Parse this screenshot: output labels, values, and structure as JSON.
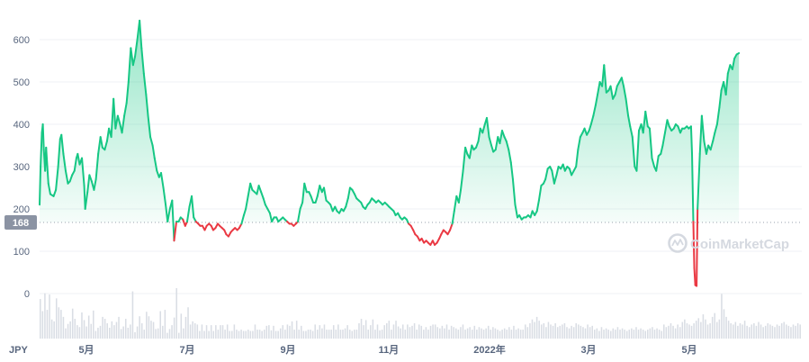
{
  "chart_data": {
    "type": "area",
    "currency_label": "JPY",
    "baseline_value": 168,
    "baseline_label": "168",
    "ylim": [
      -90,
      670
    ],
    "y_ticks": [
      0,
      100,
      200,
      300,
      400,
      500,
      600
    ],
    "y_tick_labels": [
      "0",
      "100",
      "200",
      "300",
      "400",
      "500",
      "600"
    ],
    "x_range": [
      0,
      23.4
    ],
    "x_ticks": [
      {
        "pos": 2.2,
        "label": "5月"
      },
      {
        "pos": 6.1,
        "label": "7月"
      },
      {
        "pos": 10.0,
        "label": "9月"
      },
      {
        "pos": 13.9,
        "label": "11月"
      },
      {
        "pos": 17.9,
        "label": "2022年"
      },
      {
        "pos": 21.8,
        "label": "3月"
      },
      {
        "pos": 25.7,
        "label": "5月"
      }
    ],
    "x_tick_spacing_note": "",
    "colors": {
      "up": "#16c784",
      "down": "#ea3943",
      "volume": "#d9dde4",
      "grid": "#eff2f5",
      "baseline_badge": "#8b93a3"
    },
    "grid": true,
    "watermark": "CoinMarketCap",
    "price_series": [
      [
        0.0,
        210
      ],
      [
        0.03,
        300
      ],
      [
        0.07,
        380
      ],
      [
        0.1,
        400
      ],
      [
        0.13,
        340
      ],
      [
        0.17,
        290
      ],
      [
        0.2,
        345
      ],
      [
        0.27,
        260
      ],
      [
        0.33,
        235
      ],
      [
        0.43,
        230
      ],
      [
        0.5,
        245
      ],
      [
        0.57,
        300
      ],
      [
        0.63,
        365
      ],
      [
        0.67,
        375
      ],
      [
        0.73,
        330
      ],
      [
        0.8,
        290
      ],
      [
        0.87,
        260
      ],
      [
        0.93,
        265
      ],
      [
        1.0,
        280
      ],
      [
        1.07,
        290
      ],
      [
        1.13,
        320
      ],
      [
        1.17,
        330
      ],
      [
        1.23,
        305
      ],
      [
        1.3,
        320
      ],
      [
        1.37,
        255
      ],
      [
        1.4,
        200
      ],
      [
        1.47,
        240
      ],
      [
        1.53,
        280
      ],
      [
        1.6,
        265
      ],
      [
        1.67,
        245
      ],
      [
        1.73,
        270
      ],
      [
        1.8,
        330
      ],
      [
        1.87,
        370
      ],
      [
        1.93,
        345
      ],
      [
        2.0,
        340
      ],
      [
        2.07,
        360
      ],
      [
        2.13,
        390
      ],
      [
        2.2,
        370
      ],
      [
        2.27,
        460
      ],
      [
        2.33,
        390
      ],
      [
        2.4,
        420
      ],
      [
        2.47,
        400
      ],
      [
        2.53,
        380
      ],
      [
        2.6,
        420
      ],
      [
        2.67,
        450
      ],
      [
        2.73,
        500
      ],
      [
        2.8,
        580
      ],
      [
        2.87,
        540
      ],
      [
        2.93,
        560
      ],
      [
        3.0,
        600
      ],
      [
        3.07,
        645
      ],
      [
        3.13,
        580
      ],
      [
        3.2,
        520
      ],
      [
        3.27,
        470
      ],
      [
        3.33,
        420
      ],
      [
        3.4,
        370
      ],
      [
        3.47,
        350
      ],
      [
        3.53,
        320
      ],
      [
        3.6,
        290
      ],
      [
        3.67,
        275
      ],
      [
        3.73,
        285
      ],
      [
        3.8,
        250
      ],
      [
        3.87,
        210
      ],
      [
        3.93,
        170
      ],
      [
        4.0,
        200
      ],
      [
        4.07,
        220
      ],
      [
        4.13,
        125
      ],
      [
        4.2,
        170
      ],
      [
        4.27,
        170
      ],
      [
        4.33,
        180
      ],
      [
        4.4,
        175
      ],
      [
        4.47,
        160
      ],
      [
        4.53,
        170
      ],
      [
        4.6,
        205
      ],
      [
        4.67,
        230
      ],
      [
        4.73,
        180
      ],
      [
        4.8,
        170
      ],
      [
        4.87,
        165
      ],
      [
        4.93,
        160
      ],
      [
        5.0,
        160
      ],
      [
        5.07,
        150
      ],
      [
        5.13,
        160
      ],
      [
        5.2,
        165
      ],
      [
        5.27,
        160
      ],
      [
        5.33,
        150
      ],
      [
        5.4,
        155
      ],
      [
        5.47,
        165
      ],
      [
        5.53,
        160
      ],
      [
        5.6,
        155
      ],
      [
        5.67,
        150
      ],
      [
        5.73,
        140
      ],
      [
        5.8,
        135
      ],
      [
        5.87,
        145
      ],
      [
        5.93,
        150
      ],
      [
        6.0,
        155
      ],
      [
        6.07,
        150
      ],
      [
        6.13,
        155
      ],
      [
        6.2,
        165
      ],
      [
        6.27,
        185
      ],
      [
        6.33,
        200
      ],
      [
        6.4,
        230
      ],
      [
        6.47,
        260
      ],
      [
        6.53,
        245
      ],
      [
        6.6,
        240
      ],
      [
        6.67,
        235
      ],
      [
        6.73,
        255
      ],
      [
        6.8,
        240
      ],
      [
        6.87,
        225
      ],
      [
        6.93,
        210
      ],
      [
        7.0,
        200
      ],
      [
        7.07,
        190
      ],
      [
        7.13,
        170
      ],
      [
        7.2,
        180
      ],
      [
        7.27,
        180
      ],
      [
        7.33,
        170
      ],
      [
        7.4,
        175
      ],
      [
        7.47,
        180
      ],
      [
        7.53,
        175
      ],
      [
        7.6,
        170
      ],
      [
        7.67,
        165
      ],
      [
        7.73,
        165
      ],
      [
        7.8,
        160
      ],
      [
        7.87,
        165
      ],
      [
        7.93,
        170
      ],
      [
        8.0,
        200
      ],
      [
        8.07,
        215
      ],
      [
        8.13,
        260
      ],
      [
        8.2,
        240
      ],
      [
        8.27,
        240
      ],
      [
        8.33,
        230
      ],
      [
        8.4,
        215
      ],
      [
        8.47,
        215
      ],
      [
        8.53,
        230
      ],
      [
        8.6,
        255
      ],
      [
        8.67,
        240
      ],
      [
        8.73,
        250
      ],
      [
        8.8,
        220
      ],
      [
        8.87,
        215
      ],
      [
        8.93,
        210
      ],
      [
        9.0,
        195
      ],
      [
        9.07,
        205
      ],
      [
        9.13,
        195
      ],
      [
        9.2,
        190
      ],
      [
        9.27,
        200
      ],
      [
        9.33,
        195
      ],
      [
        9.4,
        205
      ],
      [
        9.47,
        225
      ],
      [
        9.53,
        250
      ],
      [
        9.6,
        245
      ],
      [
        9.67,
        235
      ],
      [
        9.73,
        225
      ],
      [
        9.8,
        220
      ],
      [
        9.87,
        215
      ],
      [
        9.93,
        205
      ],
      [
        10.0,
        200
      ],
      [
        10.07,
        210
      ],
      [
        10.13,
        215
      ],
      [
        10.2,
        225
      ],
      [
        10.27,
        220
      ],
      [
        10.33,
        215
      ],
      [
        10.4,
        220
      ],
      [
        10.47,
        215
      ],
      [
        10.53,
        210
      ],
      [
        10.6,
        215
      ],
      [
        10.67,
        210
      ],
      [
        10.73,
        205
      ],
      [
        10.8,
        200
      ],
      [
        10.87,
        195
      ],
      [
        10.93,
        185
      ],
      [
        11.0,
        190
      ],
      [
        11.07,
        180
      ],
      [
        11.13,
        175
      ],
      [
        11.2,
        180
      ],
      [
        11.27,
        175
      ],
      [
        11.33,
        165
      ],
      [
        11.4,
        160
      ],
      [
        11.47,
        150
      ],
      [
        11.53,
        140
      ],
      [
        11.6,
        135
      ],
      [
        11.67,
        125
      ],
      [
        11.73,
        130
      ],
      [
        11.8,
        120
      ],
      [
        11.87,
        125
      ],
      [
        11.93,
        120
      ],
      [
        12.0,
        115
      ],
      [
        12.07,
        125
      ],
      [
        12.13,
        115
      ],
      [
        12.2,
        120
      ],
      [
        12.27,
        130
      ],
      [
        12.33,
        140
      ],
      [
        12.4,
        150
      ],
      [
        12.47,
        145
      ],
      [
        12.53,
        140
      ],
      [
        12.6,
        150
      ],
      [
        12.67,
        165
      ],
      [
        12.73,
        195
      ],
      [
        12.8,
        230
      ],
      [
        12.87,
        215
      ],
      [
        12.93,
        245
      ],
      [
        13.0,
        290
      ],
      [
        13.07,
        345
      ],
      [
        13.13,
        330
      ],
      [
        13.2,
        320
      ],
      [
        13.27,
        350
      ],
      [
        13.33,
        340
      ],
      [
        13.4,
        345
      ],
      [
        13.47,
        360
      ],
      [
        13.53,
        390
      ],
      [
        13.6,
        380
      ],
      [
        13.67,
        400
      ],
      [
        13.73,
        415
      ],
      [
        13.8,
        370
      ],
      [
        13.87,
        350
      ],
      [
        13.93,
        335
      ],
      [
        14.0,
        340
      ],
      [
        14.07,
        370
      ],
      [
        14.13,
        355
      ],
      [
        14.2,
        385
      ],
      [
        14.27,
        370
      ],
      [
        14.33,
        360
      ],
      [
        14.4,
        340
      ],
      [
        14.47,
        310
      ],
      [
        14.53,
        270
      ],
      [
        14.6,
        210
      ],
      [
        14.67,
        180
      ],
      [
        14.73,
        185
      ],
      [
        14.8,
        175
      ],
      [
        14.87,
        180
      ],
      [
        14.93,
        180
      ],
      [
        15.0,
        185
      ],
      [
        15.07,
        180
      ],
      [
        15.13,
        195
      ],
      [
        15.2,
        185
      ],
      [
        15.27,
        195
      ],
      [
        15.33,
        220
      ],
      [
        15.4,
        255
      ],
      [
        15.47,
        260
      ],
      [
        15.53,
        270
      ],
      [
        15.6,
        295
      ],
      [
        15.67,
        300
      ],
      [
        15.73,
        290
      ],
      [
        15.8,
        260
      ],
      [
        15.87,
        280
      ],
      [
        15.93,
        300
      ],
      [
        16.0,
        295
      ],
      [
        16.07,
        305
      ],
      [
        16.13,
        290
      ],
      [
        16.2,
        300
      ],
      [
        16.27,
        295
      ],
      [
        16.33,
        280
      ],
      [
        16.4,
        290
      ],
      [
        16.47,
        300
      ],
      [
        16.53,
        340
      ],
      [
        16.6,
        370
      ],
      [
        16.67,
        380
      ],
      [
        16.73,
        390
      ],
      [
        16.8,
        375
      ],
      [
        16.87,
        385
      ],
      [
        16.93,
        400
      ],
      [
        17.0,
        420
      ],
      [
        17.07,
        445
      ],
      [
        17.13,
        470
      ],
      [
        17.2,
        500
      ],
      [
        17.27,
        490
      ],
      [
        17.33,
        540
      ],
      [
        17.4,
        475
      ],
      [
        17.47,
        480
      ],
      [
        17.53,
        490
      ],
      [
        17.6,
        460
      ],
      [
        17.67,
        470
      ],
      [
        17.73,
        490
      ],
      [
        17.8,
        500
      ],
      [
        17.87,
        510
      ],
      [
        17.93,
        490
      ],
      [
        18.0,
        460
      ],
      [
        18.07,
        420
      ],
      [
        18.13,
        395
      ],
      [
        18.2,
        370
      ],
      [
        18.27,
        300
      ],
      [
        18.33,
        290
      ],
      [
        18.4,
        385
      ],
      [
        18.47,
        400
      ],
      [
        18.53,
        380
      ],
      [
        18.6,
        430
      ],
      [
        18.67,
        395
      ],
      [
        18.73,
        390
      ],
      [
        18.8,
        320
      ],
      [
        18.87,
        300
      ],
      [
        18.93,
        290
      ],
      [
        19.0,
        325
      ],
      [
        19.07,
        330
      ],
      [
        19.13,
        350
      ],
      [
        19.2,
        380
      ],
      [
        19.27,
        410
      ],
      [
        19.33,
        395
      ],
      [
        19.4,
        385
      ],
      [
        19.47,
        390
      ],
      [
        19.53,
        400
      ],
      [
        19.6,
        395
      ],
      [
        19.67,
        380
      ],
      [
        19.73,
        390
      ],
      [
        19.8,
        390
      ],
      [
        19.87,
        395
      ],
      [
        19.93,
        390
      ],
      [
        20.0,
        395
      ],
      [
        20.03,
        330
      ],
      [
        20.07,
        170
      ],
      [
        20.1,
        60
      ],
      [
        20.13,
        20
      ],
      [
        20.17,
        18
      ],
      [
        20.2,
        200
      ],
      [
        20.27,
        330
      ],
      [
        20.33,
        420
      ],
      [
        20.4,
        360
      ],
      [
        20.47,
        330
      ],
      [
        20.53,
        350
      ],
      [
        20.6,
        340
      ],
      [
        20.67,
        360
      ],
      [
        20.73,
        380
      ],
      [
        20.8,
        400
      ],
      [
        20.87,
        440
      ],
      [
        20.93,
        480
      ],
      [
        21.0,
        500
      ],
      [
        21.07,
        470
      ],
      [
        21.13,
        520
      ],
      [
        21.2,
        540
      ],
      [
        21.27,
        530
      ],
      [
        21.33,
        555
      ],
      [
        21.4,
        565
      ],
      [
        21.47,
        568
      ]
    ],
    "volume_series": [
      62,
      43,
      71,
      45,
      69,
      30,
      27,
      63,
      49,
      45,
      34,
      16,
      23,
      27,
      47,
      31,
      21,
      18,
      41,
      29,
      19,
      36,
      23,
      44,
      12,
      17,
      20,
      34,
      31,
      24,
      17,
      27,
      21,
      26,
      34,
      15,
      19,
      31,
      17,
      22,
      74,
      10,
      19,
      35,
      24,
      14,
      42,
      35,
      28,
      26,
      15,
      16,
      43,
      20,
      45,
      9,
      15,
      21,
      33,
      79,
      9,
      39,
      16,
      34,
      49,
      22,
      27,
      24,
      22,
      12,
      22,
      12,
      21,
      12,
      21,
      12,
      21,
      14,
      21,
      21,
      14,
      22,
      12,
      12,
      22,
      14,
      12,
      14,
      12,
      12,
      14,
      12,
      12,
      22,
      14,
      14,
      12,
      14,
      20,
      21,
      13,
      20,
      12,
      12,
      16,
      21,
      14,
      22,
      20,
      27,
      14,
      28,
      14,
      20,
      12,
      12,
      14,
      14,
      12,
      22,
      14,
      21,
      16,
      22,
      14,
      14,
      14,
      21,
      14,
      22,
      14,
      14,
      16,
      21,
      14,
      12,
      14,
      14,
      24,
      31,
      21,
      29,
      14,
      21,
      30,
      14,
      22,
      13,
      14,
      21,
      24,
      28,
      14,
      22,
      28,
      19,
      16,
      22,
      14,
      22,
      18,
      20,
      24,
      14,
      22,
      20,
      14,
      18,
      14,
      20,
      22,
      22,
      18,
      16,
      20,
      16,
      22,
      14,
      20,
      18,
      16,
      14,
      18,
      22,
      14,
      16,
      18,
      14,
      20,
      14,
      18,
      16,
      14,
      16,
      20,
      14,
      18,
      16,
      14,
      12,
      14,
      16,
      14,
      18,
      14,
      20,
      14,
      16,
      14,
      14,
      22,
      18,
      24,
      30,
      26,
      34,
      28,
      22,
      24,
      18,
      26,
      22,
      20,
      24,
      18,
      20,
      22,
      24,
      18,
      16,
      20,
      18,
      24,
      22,
      20,
      18,
      16,
      22,
      18,
      20,
      14,
      16,
      12,
      18,
      14,
      16,
      14,
      12,
      16,
      14,
      18,
      14,
      16,
      14,
      12,
      14,
      16,
      14,
      18,
      14,
      16,
      14,
      12,
      14,
      16,
      18,
      14,
      16,
      14,
      12,
      22,
      18,
      20,
      24,
      20,
      16,
      22,
      18,
      26,
      30,
      24,
      22,
      20,
      24,
      28,
      32,
      26,
      38,
      30,
      22,
      24,
      34,
      40,
      26,
      30,
      70,
      46,
      34,
      28,
      24,
      22,
      26,
      20,
      24,
      22,
      28,
      20,
      18,
      22,
      24,
      20,
      26,
      22,
      18,
      20,
      24,
      22,
      20,
      18,
      22,
      20,
      24,
      26,
      22,
      20,
      18,
      22,
      20,
      24,
      22
    ]
  }
}
